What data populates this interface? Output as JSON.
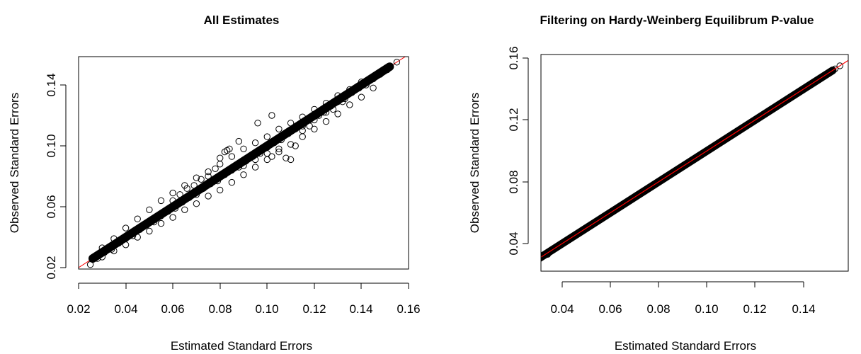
{
  "chart_data": [
    {
      "type": "scatter",
      "title": "All Estimates",
      "xlabel": "Estimated Standard Errors",
      "ylabel": "Observed Standard Errors",
      "xlim": [
        0.02,
        0.16
      ],
      "ylim": [
        0.02,
        0.155
      ],
      "xticks": [
        "0.02",
        "0.04",
        "0.06",
        "0.08",
        "0.10",
        "0.12",
        "0.14",
        "0.16"
      ],
      "yticks": [
        "0.02",
        "0.06",
        "0.10",
        "0.14"
      ],
      "point_style": "open-circle",
      "point_color": "#000000",
      "reference_line": {
        "slope": 1,
        "intercept": 0,
        "color": "#ff0000"
      },
      "points": [
        [
          0.025,
          0.022
        ],
        [
          0.028,
          0.026
        ],
        [
          0.031,
          0.03
        ],
        [
          0.034,
          0.032
        ],
        [
          0.037,
          0.036
        ],
        [
          0.04,
          0.039
        ],
        [
          0.043,
          0.041
        ],
        [
          0.046,
          0.045
        ],
        [
          0.049,
          0.048
        ],
        [
          0.052,
          0.05
        ],
        [
          0.055,
          0.054
        ],
        [
          0.058,
          0.057
        ],
        [
          0.061,
          0.059
        ],
        [
          0.064,
          0.063
        ],
        [
          0.067,
          0.066
        ],
        [
          0.07,
          0.068
        ],
        [
          0.073,
          0.072
        ],
        [
          0.076,
          0.075
        ],
        [
          0.079,
          0.077
        ],
        [
          0.082,
          0.081
        ],
        [
          0.085,
          0.084
        ],
        [
          0.088,
          0.086
        ],
        [
          0.091,
          0.09
        ],
        [
          0.094,
          0.093
        ],
        [
          0.097,
          0.095
        ],
        [
          0.1,
          0.099
        ],
        [
          0.103,
          0.102
        ],
        [
          0.106,
          0.104
        ],
        [
          0.109,
          0.108
        ],
        [
          0.112,
          0.111
        ],
        [
          0.115,
          0.113
        ],
        [
          0.118,
          0.117
        ],
        [
          0.121,
          0.12
        ],
        [
          0.124,
          0.122
        ],
        [
          0.127,
          0.126
        ],
        [
          0.13,
          0.129
        ],
        [
          0.133,
          0.131
        ],
        [
          0.136,
          0.135
        ],
        [
          0.139,
          0.138
        ],
        [
          0.142,
          0.14
        ],
        [
          0.145,
          0.144
        ],
        [
          0.148,
          0.147
        ],
        [
          0.151,
          0.15
        ],
        [
          0.155,
          0.155
        ],
        [
          0.03,
          0.033
        ],
        [
          0.035,
          0.039
        ],
        [
          0.04,
          0.046
        ],
        [
          0.045,
          0.052
        ],
        [
          0.05,
          0.058
        ],
        [
          0.055,
          0.064
        ],
        [
          0.06,
          0.069
        ],
        [
          0.065,
          0.074
        ],
        [
          0.07,
          0.079
        ],
        [
          0.075,
          0.083
        ],
        [
          0.08,
          0.088
        ],
        [
          0.085,
          0.093
        ],
        [
          0.09,
          0.098
        ],
        [
          0.095,
          0.102
        ],
        [
          0.1,
          0.106
        ],
        [
          0.105,
          0.111
        ],
        [
          0.11,
          0.115
        ],
        [
          0.115,
          0.119
        ],
        [
          0.12,
          0.124
        ],
        [
          0.125,
          0.128
        ],
        [
          0.13,
          0.133
        ],
        [
          0.135,
          0.137
        ],
        [
          0.14,
          0.142
        ],
        [
          0.03,
          0.027
        ],
        [
          0.035,
          0.031
        ],
        [
          0.04,
          0.035
        ],
        [
          0.045,
          0.04
        ],
        [
          0.05,
          0.044
        ],
        [
          0.055,
          0.049
        ],
        [
          0.06,
          0.053
        ],
        [
          0.065,
          0.058
        ],
        [
          0.07,
          0.062
        ],
        [
          0.075,
          0.067
        ],
        [
          0.08,
          0.071
        ],
        [
          0.085,
          0.076
        ],
        [
          0.09,
          0.081
        ],
        [
          0.095,
          0.086
        ],
        [
          0.1,
          0.091
        ],
        [
          0.105,
          0.096
        ],
        [
          0.11,
          0.101
        ],
        [
          0.115,
          0.106
        ],
        [
          0.12,
          0.111
        ],
        [
          0.125,
          0.116
        ],
        [
          0.13,
          0.121
        ],
        [
          0.135,
          0.127
        ],
        [
          0.14,
          0.132
        ],
        [
          0.145,
          0.138
        ],
        [
          0.06,
          0.064
        ],
        [
          0.063,
          0.068
        ],
        [
          0.066,
          0.072
        ],
        [
          0.069,
          0.074
        ],
        [
          0.072,
          0.078
        ],
        [
          0.075,
          0.08
        ],
        [
          0.078,
          0.085
        ],
        [
          0.08,
          0.092
        ],
        [
          0.082,
          0.096
        ],
        [
          0.083,
          0.097
        ],
        [
          0.084,
          0.098
        ],
        [
          0.088,
          0.103
        ],
        [
          0.096,
          0.115
        ],
        [
          0.102,
          0.12
        ],
        [
          0.09,
          0.087
        ],
        [
          0.095,
          0.091
        ],
        [
          0.1,
          0.095
        ],
        [
          0.102,
          0.093
        ],
        [
          0.105,
          0.098
        ],
        [
          0.108,
          0.092
        ],
        [
          0.11,
          0.091
        ],
        [
          0.112,
          0.1
        ],
        [
          0.115,
          0.11
        ],
        [
          0.118,
          0.113
        ],
        [
          0.12,
          0.117
        ],
        [
          0.122,
          0.12
        ],
        [
          0.125,
          0.122
        ],
        [
          0.128,
          0.124
        ],
        [
          0.132,
          0.129
        ]
      ]
    },
    {
      "type": "scatter",
      "title": "Filtering on Hardy-Weinberg Equilibrum P-value",
      "xlabel": "Estimated Standard Errors",
      "ylabel": "Observed Standard Errors",
      "xlim": [
        0.023,
        0.159
      ],
      "ylim": [
        0.023,
        0.161
      ],
      "xticks": [
        "0.04",
        "0.06",
        "0.08",
        "0.10",
        "0.12",
        "0.14"
      ],
      "yticks": [
        "0.04",
        "0.08",
        "0.12",
        "0.16"
      ],
      "point_style": "open-circle",
      "point_color": "#000000",
      "reference_line": {
        "slope": 1,
        "intercept": 0,
        "color": "#ff0000"
      },
      "points": [
        [
          0.029,
          0.028
        ],
        [
          0.031,
          0.031
        ],
        [
          0.033,
          0.033
        ],
        [
          0.035,
          0.035
        ],
        [
          0.037,
          0.037
        ],
        [
          0.039,
          0.039
        ],
        [
          0.041,
          0.041
        ],
        [
          0.043,
          0.043
        ],
        [
          0.045,
          0.045
        ],
        [
          0.047,
          0.047
        ],
        [
          0.049,
          0.049
        ],
        [
          0.051,
          0.051
        ],
        [
          0.053,
          0.053
        ],
        [
          0.055,
          0.055
        ],
        [
          0.057,
          0.057
        ],
        [
          0.059,
          0.059
        ],
        [
          0.061,
          0.061
        ],
        [
          0.063,
          0.063
        ],
        [
          0.065,
          0.065
        ],
        [
          0.067,
          0.067
        ],
        [
          0.069,
          0.069
        ],
        [
          0.071,
          0.071
        ],
        [
          0.073,
          0.073
        ],
        [
          0.075,
          0.075
        ],
        [
          0.077,
          0.077
        ],
        [
          0.079,
          0.079
        ],
        [
          0.081,
          0.081
        ],
        [
          0.083,
          0.083
        ],
        [
          0.085,
          0.085
        ],
        [
          0.087,
          0.087
        ],
        [
          0.089,
          0.089
        ],
        [
          0.091,
          0.091
        ],
        [
          0.093,
          0.093
        ],
        [
          0.095,
          0.095
        ],
        [
          0.097,
          0.097
        ],
        [
          0.099,
          0.099
        ],
        [
          0.101,
          0.101
        ],
        [
          0.103,
          0.103
        ],
        [
          0.105,
          0.105
        ],
        [
          0.107,
          0.107
        ],
        [
          0.109,
          0.109
        ],
        [
          0.111,
          0.111
        ],
        [
          0.113,
          0.113
        ],
        [
          0.115,
          0.115
        ],
        [
          0.117,
          0.117
        ],
        [
          0.119,
          0.119
        ],
        [
          0.121,
          0.121
        ],
        [
          0.123,
          0.123
        ],
        [
          0.125,
          0.125
        ],
        [
          0.127,
          0.127
        ],
        [
          0.129,
          0.129
        ],
        [
          0.131,
          0.131
        ],
        [
          0.133,
          0.133
        ],
        [
          0.135,
          0.135
        ],
        [
          0.137,
          0.137
        ],
        [
          0.139,
          0.139
        ],
        [
          0.141,
          0.141
        ],
        [
          0.143,
          0.143
        ],
        [
          0.145,
          0.145
        ],
        [
          0.147,
          0.147
        ],
        [
          0.149,
          0.149
        ],
        [
          0.151,
          0.151
        ],
        [
          0.153,
          0.153
        ],
        [
          0.155,
          0.155
        ],
        [
          0.03,
          0.029
        ],
        [
          0.034,
          0.033
        ],
        [
          0.038,
          0.038
        ],
        [
          0.042,
          0.042
        ],
        [
          0.046,
          0.046
        ],
        [
          0.05,
          0.05
        ],
        [
          0.054,
          0.054
        ],
        [
          0.058,
          0.058
        ],
        [
          0.062,
          0.062
        ],
        [
          0.066,
          0.066
        ],
        [
          0.07,
          0.07
        ],
        [
          0.074,
          0.074
        ],
        [
          0.078,
          0.078
        ],
        [
          0.082,
          0.082
        ],
        [
          0.086,
          0.086
        ],
        [
          0.09,
          0.09
        ],
        [
          0.094,
          0.094
        ],
        [
          0.098,
          0.098
        ],
        [
          0.102,
          0.102
        ],
        [
          0.106,
          0.106
        ],
        [
          0.11,
          0.11
        ],
        [
          0.114,
          0.114
        ],
        [
          0.118,
          0.118
        ],
        [
          0.122,
          0.122
        ],
        [
          0.126,
          0.126
        ],
        [
          0.13,
          0.13
        ],
        [
          0.134,
          0.134
        ],
        [
          0.138,
          0.138
        ],
        [
          0.142,
          0.142
        ],
        [
          0.146,
          0.146
        ],
        [
          0.15,
          0.15
        ]
      ]
    }
  ]
}
